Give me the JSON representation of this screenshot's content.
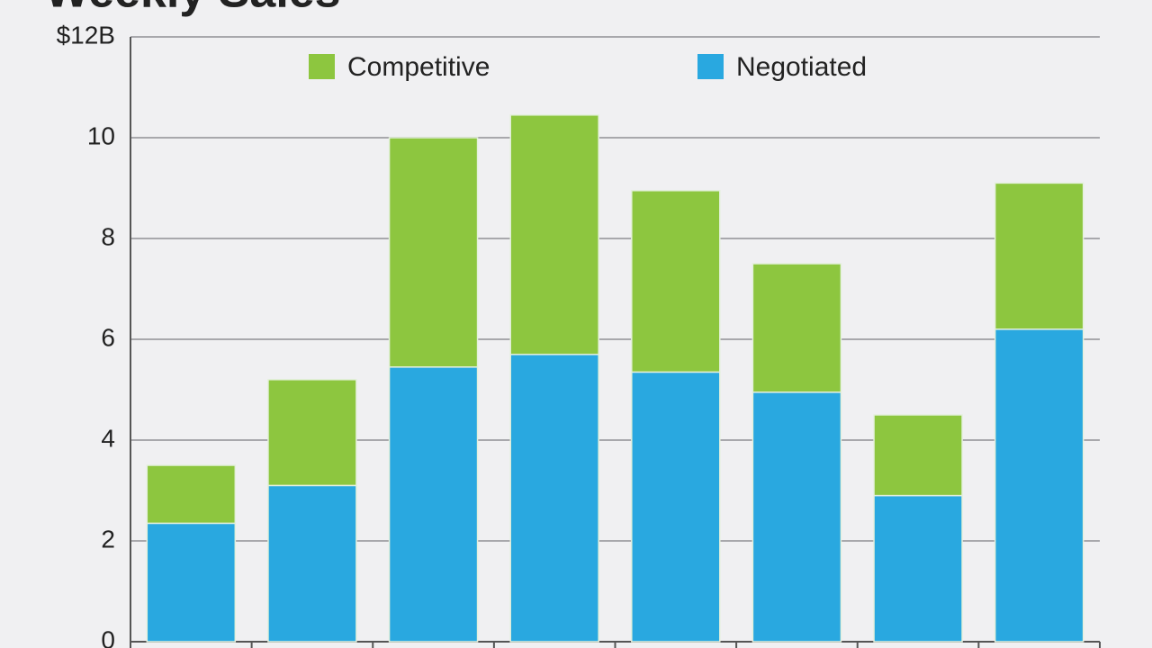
{
  "chart_data": {
    "type": "stacked-bar",
    "title": "Weekly Sales",
    "categories": [
      null,
      null,
      null,
      null,
      null,
      null,
      null,
      null
    ],
    "series": [
      {
        "name": "Negotiated",
        "color": "#29a8e0",
        "values": [
          2.35,
          3.1,
          5.45,
          5.7,
          5.35,
          4.95,
          2.9,
          6.2
        ]
      },
      {
        "name": "Competitive",
        "color": "#8dc63f",
        "values": [
          1.15,
          2.1,
          4.55,
          4.75,
          3.6,
          2.55,
          1.6,
          2.9
        ]
      }
    ],
    "ylim": [
      0,
      12
    ],
    "yticks": [
      0,
      2,
      4,
      6,
      8,
      10,
      {
        "value": 12,
        "label": "$12B"
      }
    ],
    "grid": true
  }
}
